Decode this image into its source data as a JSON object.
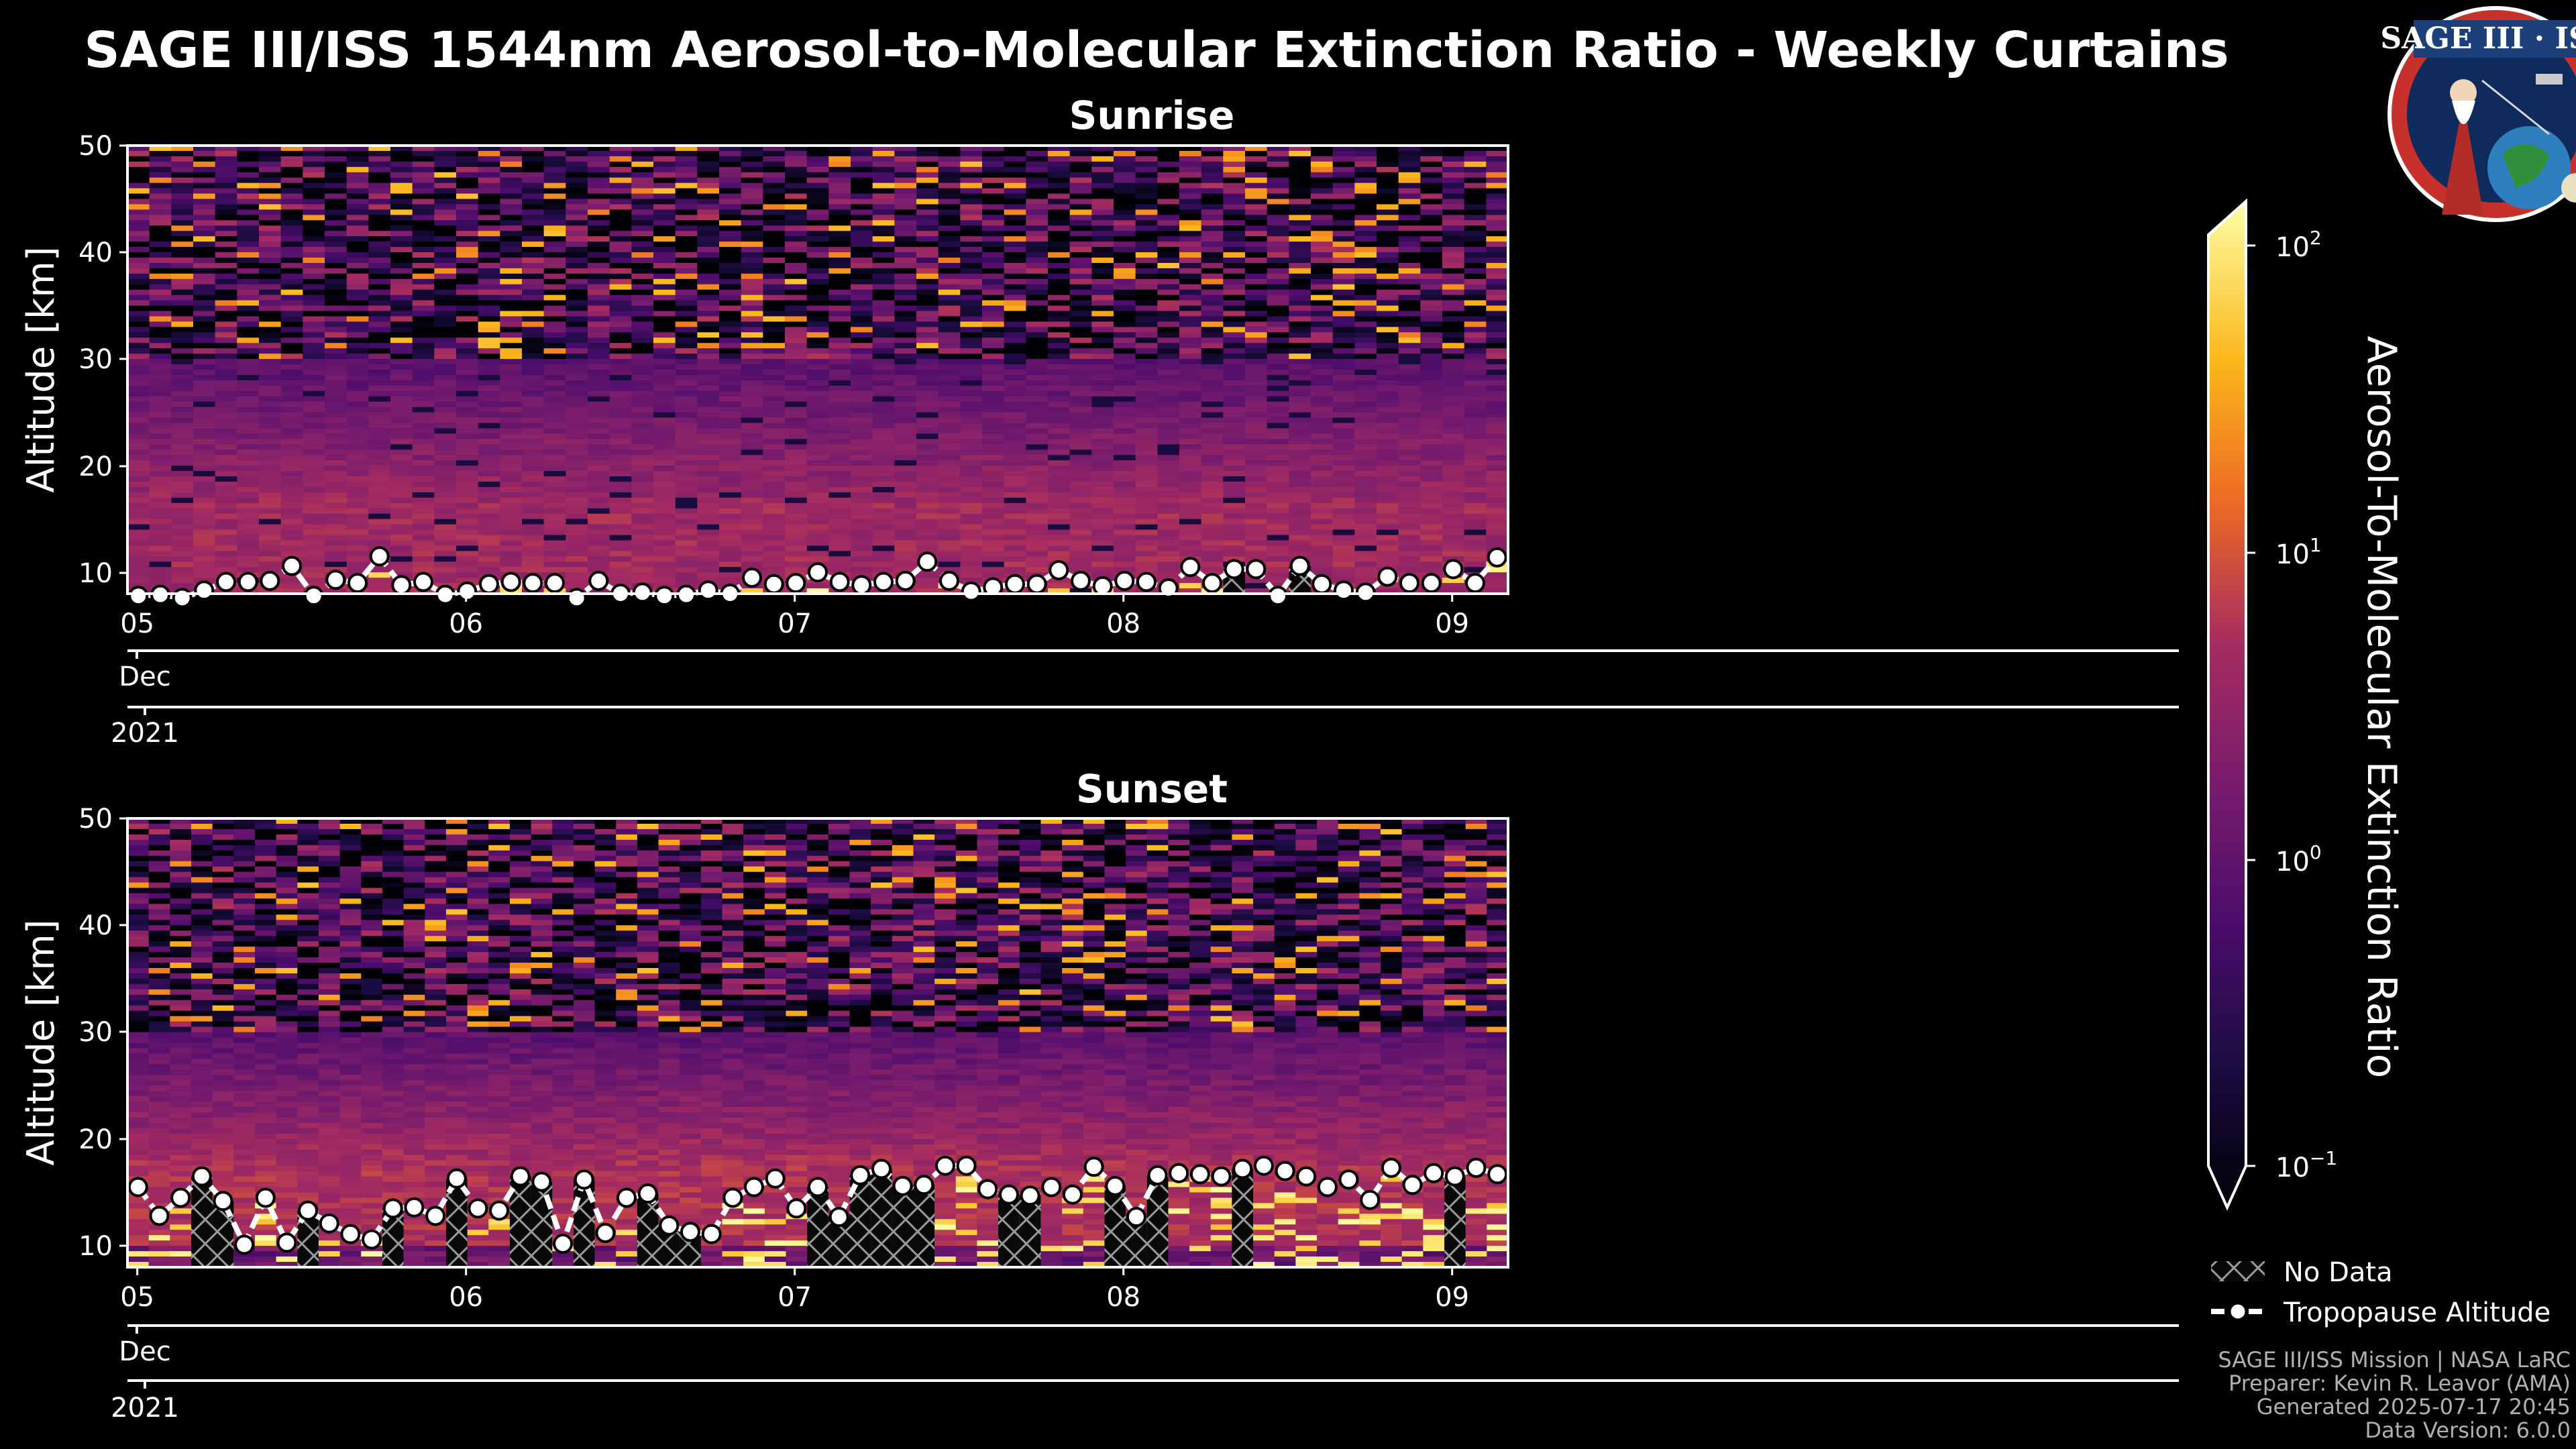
{
  "title": "SAGE III/ISS 1544nm Aerosol-to-Molecular Extinction Ratio - Weekly Curtains",
  "logo": {
    "text": "SAGE III · ISS"
  },
  "colors": {
    "background": "#000000",
    "text": "#ffffff",
    "tropopause": "#ffffff",
    "frame": "#ffffff",
    "colormap": "inferno"
  },
  "colorbar": {
    "label": "Aerosol-To-Molecular Extinction Ratio",
    "scale": "log",
    "range": [
      0.1,
      100
    ],
    "ticks": [
      {
        "base": "10",
        "exp": "2"
      },
      {
        "base": "10",
        "exp": "1"
      },
      {
        "base": "10",
        "exp": "0"
      },
      {
        "base": "10",
        "exp": "−1"
      }
    ]
  },
  "legend": {
    "position": "lower-right",
    "no_data_label": "No Data",
    "tropopause_label": "Tropopause Altitude"
  },
  "credits": [
    "SAGE III/ISS Mission | NASA LaRC",
    "Preparer: Kevin R. Leavor (AMA)",
    "Generated 2025-07-17 20:45",
    "Data Version: 6.0.0"
  ],
  "chart_data": [
    {
      "type": "heatmap",
      "title": "Sunrise",
      "ylabel": "Altitude [km]",
      "ylim": [
        8,
        50
      ],
      "yticks": [
        "50",
        "40",
        "30",
        "20",
        "10"
      ],
      "x_day_ticks": [
        "05",
        "06",
        "07",
        "08",
        "09"
      ],
      "x_month": "Dec",
      "x_year": "2021",
      "xlim_days": [
        4.97,
        9.17
      ],
      "tropopause_km": [
        7.8,
        7.9,
        7.6,
        8.3,
        9.1,
        9.1,
        9.2,
        10.6,
        7.8,
        9.3,
        9.0,
        11.5,
        8.8,
        9.1,
        7.9,
        8.2,
        8.9,
        9.1,
        9.0,
        9.0,
        7.6,
        9.2,
        8.0,
        8.1,
        7.8,
        7.9,
        8.3,
        8.0,
        9.5,
        8.9,
        9.0,
        10.0,
        9.1,
        8.8,
        9.1,
        9.2,
        11.0,
        9.2,
        8.2,
        8.6,
        8.9,
        8.9,
        10.2,
        9.2,
        8.7,
        9.2,
        9.1,
        8.5,
        10.5,
        9.0,
        10.3,
        10.3,
        7.8,
        10.6,
        8.9,
        8.3,
        8.1,
        9.6,
        9.0,
        9.0,
        10.3,
        9.0,
        11.4
      ],
      "structure": {
        "background_ratio": 1.2,
        "stratospheric_aerosol_layer_km": [
          8,
          30
        ],
        "layer_ratio": 4,
        "noisy_upper_levels_km": [
          30,
          50
        ]
      }
    },
    {
      "type": "heatmap",
      "title": "Sunset",
      "ylabel": "Altitude [km]",
      "ylim": [
        8,
        50
      ],
      "yticks": [
        "50",
        "40",
        "30",
        "20",
        "10"
      ],
      "x_day_ticks": [
        "05",
        "06",
        "07",
        "08",
        "09"
      ],
      "x_month": "Dec",
      "x_year": "2021",
      "xlim_days": [
        4.97,
        9.17
      ],
      "tropopause_km": [
        15.5,
        12.8,
        14.5,
        16.5,
        14.2,
        10.1,
        14.5,
        10.3,
        13.3,
        12.1,
        11.1,
        10.6,
        13.5,
        13.6,
        12.8,
        16.3,
        13.5,
        13.3,
        16.5,
        16.0,
        10.2,
        16.2,
        11.2,
        14.5,
        14.9,
        11.9,
        11.3,
        11.1,
        14.5,
        15.5,
        16.3,
        13.5,
        15.5,
        12.7,
        16.6,
        17.2,
        15.6,
        15.7,
        17.5,
        17.5,
        15.3,
        14.8,
        14.7,
        15.5,
        14.8,
        17.4,
        15.6,
        12.7,
        16.6,
        16.8,
        16.7,
        16.5,
        17.2,
        17.5,
        17.0,
        16.5,
        15.5,
        16.2,
        14.3,
        17.3,
        15.7,
        16.8,
        16.5,
        17.3,
        16.7
      ],
      "structure": {
        "background_ratio": 1.2,
        "stratospheric_aerosol_layer_km": [
          10,
          30
        ],
        "layer_ratio": 5,
        "noisy_upper_levels_km": [
          30,
          50
        ]
      }
    }
  ]
}
